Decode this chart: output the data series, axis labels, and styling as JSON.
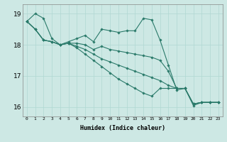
{
  "xlabel": "Humidex (Indice chaleur)",
  "xlim": [
    -0.5,
    23.5
  ],
  "ylim": [
    15.7,
    19.3
  ],
  "yticks": [
    16,
    17,
    18,
    19
  ],
  "xticks": [
    0,
    1,
    2,
    3,
    4,
    5,
    6,
    7,
    8,
    9,
    10,
    11,
    12,
    13,
    14,
    15,
    16,
    17,
    18,
    19,
    20,
    21,
    22,
    23
  ],
  "bg_color": "#cde8e4",
  "grid_color": "#b0d8d2",
  "line_color": "#2a7a6a",
  "series": [
    [
      18.75,
      19.0,
      18.85,
      18.2,
      18.0,
      18.1,
      18.2,
      18.3,
      18.1,
      18.5,
      18.45,
      18.4,
      18.45,
      18.45,
      18.85,
      18.8,
      18.15,
      17.35,
      16.55,
      16.6,
      16.05,
      16.15,
      16.15,
      16.15
    ],
    [
      18.75,
      18.5,
      18.15,
      18.1,
      18.0,
      18.05,
      18.05,
      18.0,
      17.85,
      17.95,
      17.85,
      17.8,
      17.75,
      17.7,
      17.65,
      17.6,
      17.5,
      17.15,
      16.6,
      16.6,
      16.1,
      16.15,
      16.15,
      16.15
    ],
    [
      18.75,
      18.5,
      18.15,
      18.1,
      18.0,
      18.05,
      17.95,
      17.85,
      17.7,
      17.55,
      17.45,
      17.35,
      17.25,
      17.15,
      17.05,
      16.95,
      16.85,
      16.7,
      16.6,
      16.6,
      16.1,
      16.15,
      16.15,
      16.15
    ],
    [
      18.75,
      18.5,
      18.15,
      18.1,
      18.0,
      18.05,
      17.9,
      17.7,
      17.5,
      17.3,
      17.1,
      16.9,
      16.75,
      16.6,
      16.45,
      16.35,
      16.6,
      16.6,
      16.6,
      16.6,
      16.1,
      16.15,
      16.15,
      16.15
    ]
  ]
}
